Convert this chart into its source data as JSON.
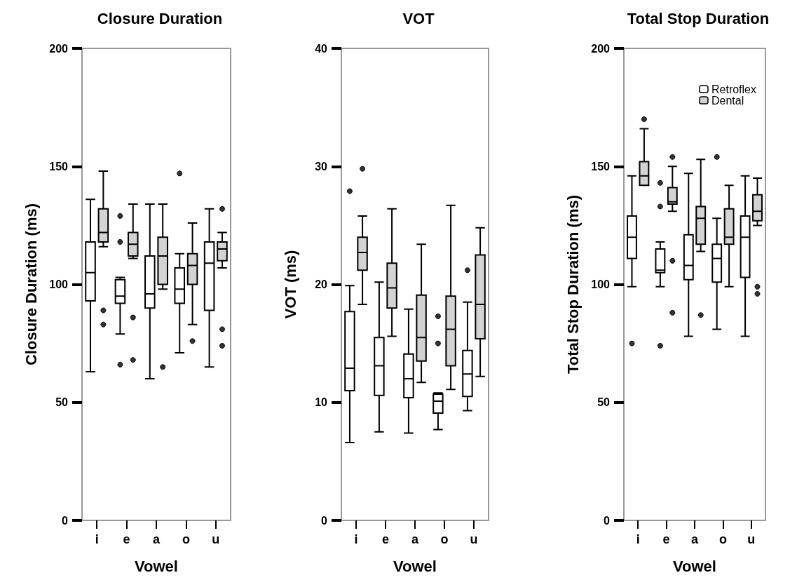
{
  "chart_data": [
    {
      "type": "box",
      "title": "Closure Duration",
      "xlabel": "Vowel",
      "ylabel": "Closure Duration (ms)",
      "categories": [
        "i",
        "e",
        "a",
        "o",
        "u"
      ],
      "ylim": [
        0,
        200
      ],
      "yticks": [
        0,
        50,
        100,
        150,
        200
      ],
      "grid": false,
      "legend": false,
      "series": [
        {
          "color": "#ffffff",
          "boxes": [
            {
              "low": 63,
              "q1": 93,
              "median": 105,
              "q3": 118,
              "high": 136
            },
            {
              "low": 79,
              "q1": 92,
              "median": 95,
              "q3": 102,
              "high": 103,
              "outliers": [
                129,
                118,
                66
              ]
            },
            {
              "low": 60,
              "q1": 90,
              "median": 96,
              "q3": 112,
              "high": 134
            },
            {
              "low": 71,
              "q1": 92,
              "median": 98,
              "q3": 107,
              "high": 113,
              "outliers": [
                147
              ]
            },
            {
              "low": 65,
              "q1": 89,
              "median": 109,
              "q3": 118,
              "high": 132
            }
          ]
        },
        {
          "color": "#d3d3d3",
          "boxes": [
            {
              "low": 116,
              "q1": 118,
              "median": 122,
              "q3": 132,
              "high": 148,
              "outliers": [
                89,
                83
              ]
            },
            {
              "low": 111,
              "q1": 112,
              "median": 117,
              "q3": 122,
              "high": 134,
              "outliers": [
                86,
                68
              ]
            },
            {
              "low": 98,
              "q1": 100,
              "median": 112,
              "q3": 120,
              "high": 134,
              "outliers": [
                65
              ]
            },
            {
              "low": 83,
              "q1": 100,
              "median": 108,
              "q3": 113,
              "high": 126,
              "outliers": [
                76
              ]
            },
            {
              "low": 107,
              "q1": 110,
              "median": 115,
              "q3": 118,
              "high": 122,
              "outliers": [
                132,
                81,
                74
              ]
            }
          ]
        }
      ]
    },
    {
      "type": "box",
      "title": "VOT",
      "xlabel": "Vowel",
      "ylabel": "VOT (ms)",
      "categories": [
        "i",
        "e",
        "a",
        "o",
        "u"
      ],
      "ylim": [
        0,
        40
      ],
      "yticks": [
        0,
        10,
        20,
        30,
        40
      ],
      "grid": false,
      "legend": false,
      "series": [
        {
          "color": "#ffffff",
          "boxes": [
            {
              "low": 6.6,
              "q1": 11.0,
              "median": 12.9,
              "q3": 17.7,
              "high": 19.9,
              "outliers": [
                27.9
              ]
            },
            {
              "low": 7.5,
              "q1": 10.6,
              "median": 13.1,
              "q3": 15.5,
              "high": 20.2
            },
            {
              "low": 7.4,
              "q1": 10.4,
              "median": 12.0,
              "q3": 14.1,
              "high": 17.9
            },
            {
              "low": 7.7,
              "q1": 9.1,
              "median": 10.1,
              "q3": 10.7,
              "high": 10.8,
              "outliers": [
                17.3,
                15.0
              ]
            },
            {
              "low": 9.3,
              "q1": 10.5,
              "median": 12.4,
              "q3": 14.4,
              "high": 18.5,
              "outliers": [
                21.2
              ]
            }
          ]
        },
        {
          "color": "#d3d3d3",
          "boxes": [
            {
              "low": 18.3,
              "q1": 21.2,
              "median": 22.7,
              "q3": 24.0,
              "high": 25.8,
              "outliers": [
                29.8
              ]
            },
            {
              "low": 15.6,
              "q1": 18.0,
              "median": 19.7,
              "q3": 21.8,
              "high": 26.4
            },
            {
              "low": 11.7,
              "q1": 13.5,
              "median": 15.5,
              "q3": 19.1,
              "high": 23.4
            },
            {
              "low": 11.1,
              "q1": 13.1,
              "median": 16.2,
              "q3": 19.0,
              "high": 26.7
            },
            {
              "low": 12.2,
              "q1": 15.4,
              "median": 18.3,
              "q3": 22.5,
              "high": 24.8
            }
          ]
        }
      ]
    },
    {
      "type": "box",
      "title": "Total Stop Duration",
      "xlabel": "Vowel",
      "ylabel": "Total Stop Duration (ms)",
      "categories": [
        "i",
        "e",
        "a",
        "o",
        "u"
      ],
      "ylim": [
        0,
        200
      ],
      "yticks": [
        0,
        50,
        100,
        150,
        200
      ],
      "grid": false,
      "legend": "top right",
      "series": [
        {
          "name": "Retroflex",
          "color": "#ffffff",
          "boxes": [
            {
              "low": 99,
              "q1": 111,
              "median": 120,
              "q3": 129,
              "high": 146,
              "outliers": [
                75
              ]
            },
            {
              "low": 99,
              "q1": 105,
              "median": 106,
              "q3": 115,
              "high": 118,
              "outliers": [
                143,
                133,
                74
              ]
            },
            {
              "low": 78,
              "q1": 102,
              "median": 108,
              "q3": 121,
              "high": 147
            },
            {
              "low": 81,
              "q1": 101,
              "median": 111,
              "q3": 117,
              "high": 128,
              "outliers": [
                154
              ]
            },
            {
              "low": 78,
              "q1": 103,
              "median": 120,
              "q3": 129,
              "high": 146
            }
          ]
        },
        {
          "name": "Dental",
          "color": "#d3d3d3",
          "boxes": [
            {
              "low": 142,
              "q1": 142,
              "median": 146,
              "q3": 152,
              "high": 166,
              "outliers": [
                170
              ]
            },
            {
              "low": 131,
              "q1": 134,
              "median": 135,
              "q3": 141,
              "high": 150,
              "outliers": [
                154,
                110,
                88
              ]
            },
            {
              "low": 114,
              "q1": 117,
              "median": 128,
              "q3": 133,
              "high": 153,
              "outliers": [
                87
              ]
            },
            {
              "low": 99,
              "q1": 117,
              "median": 120,
              "q3": 132,
              "high": 142
            },
            {
              "low": 125,
              "q1": 127,
              "median": 131,
              "q3": 138,
              "high": 145,
              "outliers": [
                99,
                96
              ]
            }
          ]
        }
      ]
    }
  ]
}
